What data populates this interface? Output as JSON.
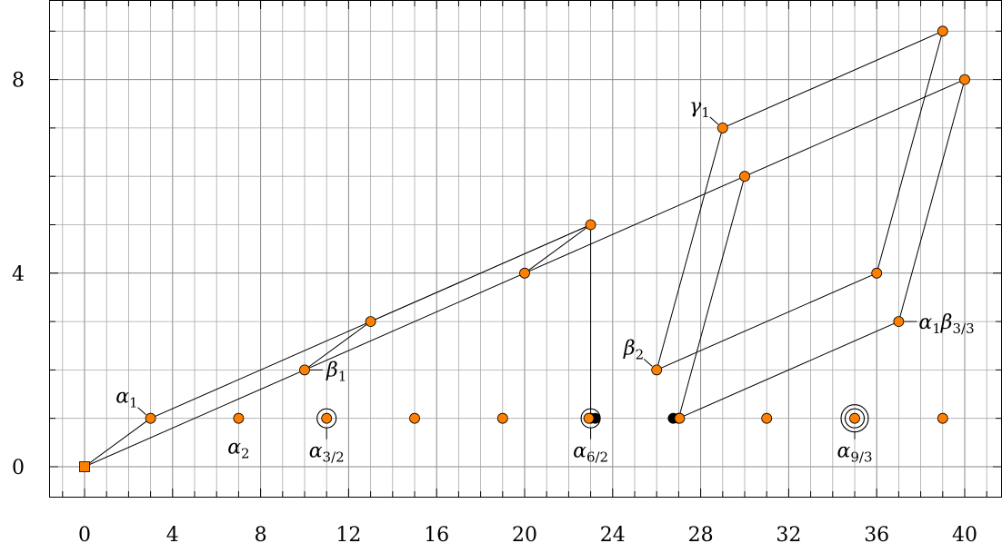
{
  "chart_data": {
    "type": "scatter",
    "title": "",
    "xlabel": "",
    "ylabel": "",
    "xlim": [
      -1.5,
      41.5
    ],
    "ylim": [
      -0.6,
      9.6
    ],
    "grid": true,
    "x_ticks": [
      0,
      4,
      8,
      12,
      16,
      20,
      24,
      28,
      32,
      36,
      40
    ],
    "y_ticks": [
      0,
      4,
      8
    ],
    "colors": {
      "point_fill": "#ff8000",
      "dark_point": "#000000",
      "line": "#000000",
      "grid_major": "#8a8a8a",
      "grid_minor": "#a8a8a8"
    },
    "origin": {
      "x": 0,
      "y": 0,
      "shape": "square"
    },
    "points": [
      {
        "x": 3,
        "y": 1
      },
      {
        "x": 7,
        "y": 1
      },
      {
        "x": 11,
        "y": 1
      },
      {
        "x": 15,
        "y": 1
      },
      {
        "x": 19,
        "y": 1
      },
      {
        "x": 23,
        "y": 1
      },
      {
        "x": 27,
        "y": 1
      },
      {
        "x": 31,
        "y": 1
      },
      {
        "x": 35,
        "y": 1
      },
      {
        "x": 39,
        "y": 1
      },
      {
        "x": 10,
        "y": 2
      },
      {
        "x": 26,
        "y": 2
      },
      {
        "x": 13,
        "y": 3
      },
      {
        "x": 37,
        "y": 3
      },
      {
        "x": 20,
        "y": 4
      },
      {
        "x": 36,
        "y": 4
      },
      {
        "x": 23,
        "y": 5
      },
      {
        "x": 30,
        "y": 6
      },
      {
        "x": 29,
        "y": 7
      },
      {
        "x": 40,
        "y": 8
      },
      {
        "x": 39,
        "y": 9
      }
    ],
    "dark_points": [
      {
        "x": 23,
        "y": 1
      },
      {
        "x": 27,
        "y": 1
      }
    ],
    "rings": [
      {
        "x": 11,
        "y": 1,
        "count": 1
      },
      {
        "x": 23,
        "y": 1,
        "count": 1
      },
      {
        "x": 35,
        "y": 1,
        "count": 2
      }
    ],
    "segments": [
      [
        [
          0,
          0
        ],
        [
          3,
          1
        ]
      ],
      [
        [
          0,
          0
        ],
        [
          10,
          2
        ]
      ],
      [
        [
          3,
          1
        ],
        [
          13,
          3
        ]
      ],
      [
        [
          10,
          2
        ],
        [
          13,
          3
        ]
      ],
      [
        [
          10,
          2
        ],
        [
          20,
          4
        ]
      ],
      [
        [
          13,
          3
        ],
        [
          23,
          5
        ]
      ],
      [
        [
          20,
          4
        ],
        [
          23,
          5
        ]
      ],
      [
        [
          20,
          4
        ],
        [
          30,
          6
        ]
      ],
      [
        [
          30,
          6
        ],
        [
          40,
          8
        ]
      ],
      [
        [
          23,
          5
        ],
        [
          23,
          1
        ]
      ],
      [
        [
          13,
          3
        ],
        [
          23,
          5
        ]
      ],
      [
        [
          26,
          2
        ],
        [
          29,
          7
        ]
      ],
      [
        [
          29,
          7
        ],
        [
          39,
          9
        ]
      ],
      [
        [
          26,
          2
        ],
        [
          36,
          4
        ]
      ],
      [
        [
          36,
          4
        ],
        [
          39,
          9
        ]
      ],
      [
        [
          27,
          1
        ],
        [
          30,
          6
        ]
      ],
      [
        [
          27,
          1
        ],
        [
          37,
          3
        ]
      ],
      [
        [
          37,
          3
        ],
        [
          40,
          8
        ]
      ]
    ],
    "annotations": [
      {
        "base": "α",
        "sub": "1",
        "pre": "",
        "x": 3,
        "y": 1,
        "pos": "upper-left"
      },
      {
        "base": "α",
        "sub": "2",
        "pre": "",
        "x": 7,
        "y": 1,
        "pos": "below"
      },
      {
        "base": "α",
        "sub": "3/2",
        "pre": "",
        "x": 11,
        "y": 1,
        "pos": "below-line"
      },
      {
        "base": "α",
        "sub": "6/2",
        "pre": "",
        "x": 23,
        "y": 1,
        "pos": "below-line"
      },
      {
        "base": "α",
        "sub": "9/3",
        "pre": "",
        "x": 35,
        "y": 1,
        "pos": "below-line"
      },
      {
        "base": "β",
        "sub": "1",
        "pre": "",
        "x": 10,
        "y": 2,
        "pos": "right"
      },
      {
        "base": "β",
        "sub": "2",
        "pre": "",
        "x": 26,
        "y": 2,
        "pos": "upper-left"
      },
      {
        "base": "γ",
        "sub": "1",
        "pre": "",
        "x": 29,
        "y": 7,
        "pos": "upper-left"
      },
      {
        "base": "β",
        "sub": "3/3",
        "pre": "α",
        "pre_sub": "1",
        "x": 37,
        "y": 3,
        "pos": "right"
      }
    ]
  }
}
